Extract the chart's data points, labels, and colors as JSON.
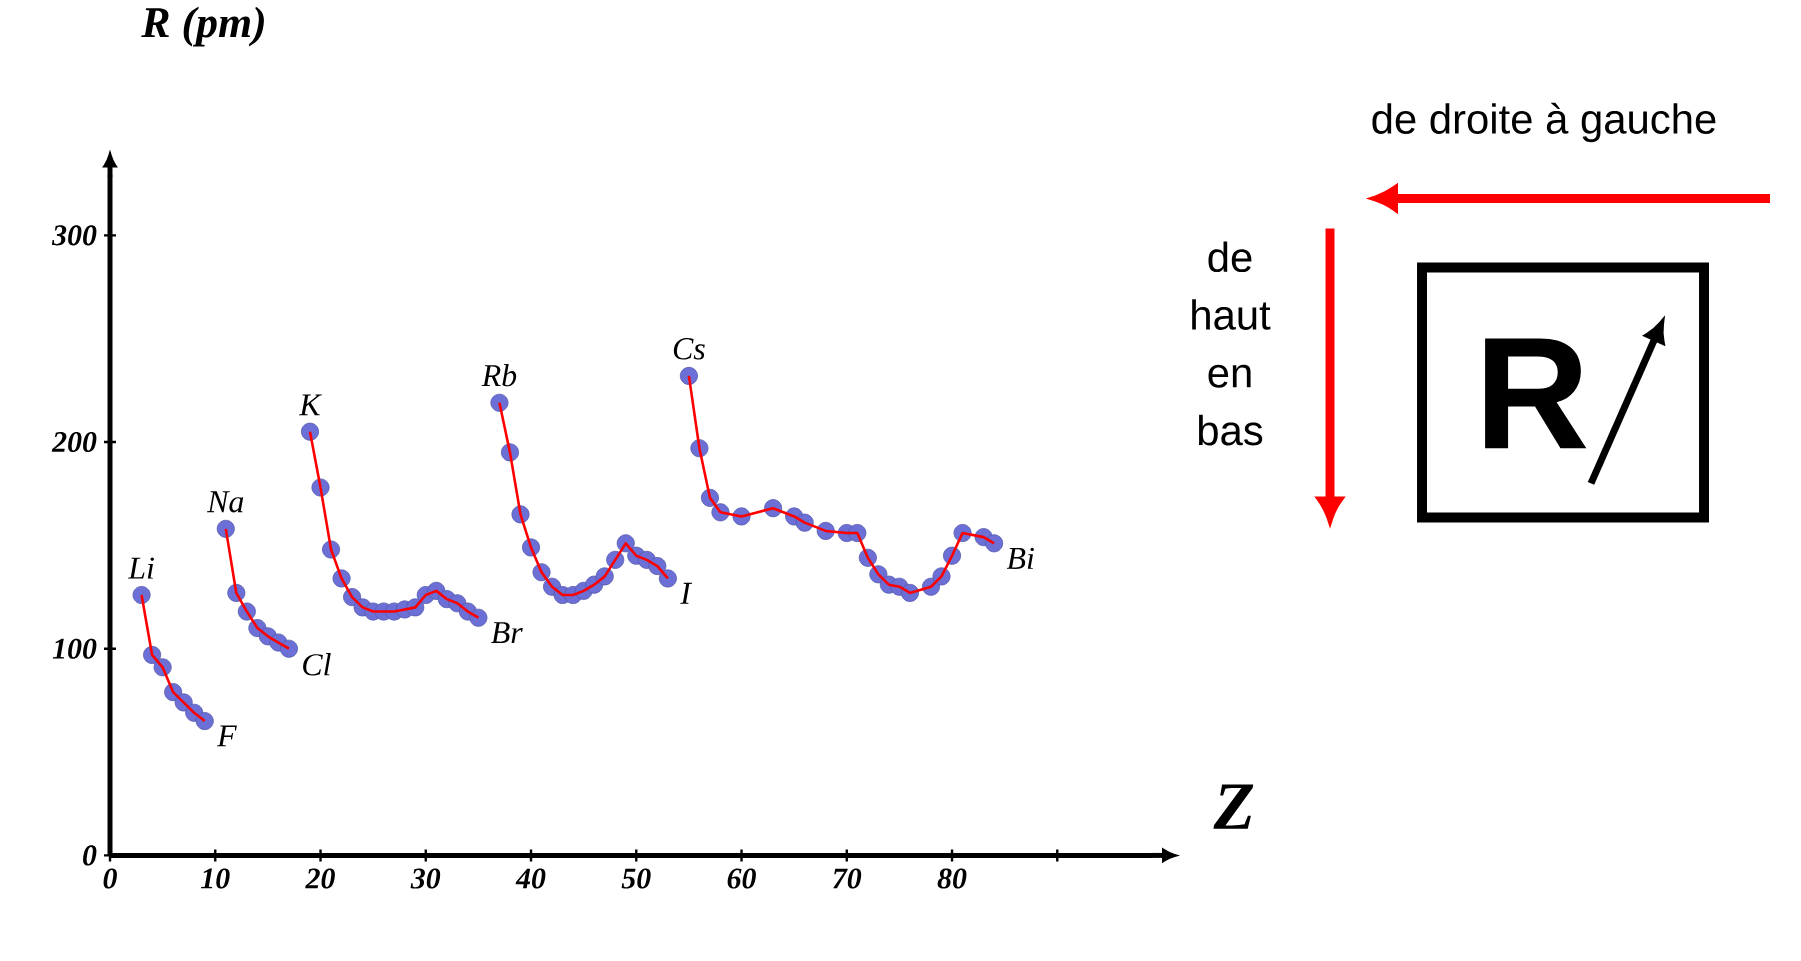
{
  "chart_data": {
    "type": "line",
    "xlabel": "Z",
    "ylabel": "R (pm)",
    "xlim": [
      0,
      99
    ],
    "ylim": [
      0,
      329
    ],
    "xticks": [
      0,
      10,
      20,
      30,
      40,
      50,
      60,
      70,
      80,
      {
        "value": 90,
        "label": null
      }
    ],
    "yticks": [
      0,
      100,
      200,
      300
    ],
    "marker": "circle",
    "grid": false,
    "series": [
      {
        "color": "#ff0000",
        "x": [
          3,
          4,
          5,
          6,
          7,
          8,
          9
        ],
        "values": [
          126,
          97,
          91,
          79,
          74,
          69,
          65
        ]
      },
      {
        "color": "#ff0000",
        "x": [
          11,
          12,
          13,
          14,
          15,
          16,
          17
        ],
        "values": [
          158,
          127,
          118,
          110,
          106,
          103,
          100
        ]
      },
      {
        "color": "#ff0000",
        "x": [
          19,
          20,
          21,
          22,
          23,
          24,
          25,
          26,
          27,
          28,
          29,
          30,
          31,
          32,
          33,
          34,
          35
        ],
        "values": [
          205,
          178,
          148,
          134,
          125,
          120,
          118,
          118,
          118,
          119,
          120,
          126,
          128,
          124,
          122,
          118,
          115
        ]
      },
      {
        "color": "#ff0000",
        "x": [
          37,
          38,
          39,
          40,
          41,
          42,
          43,
          44,
          45,
          46,
          47,
          48,
          49,
          50,
          51,
          52,
          53
        ],
        "values": [
          219,
          195,
          165,
          149,
          137,
          130,
          126,
          126,
          128,
          131,
          135,
          143,
          151,
          145,
          143,
          140,
          134
        ]
      },
      {
        "color": "#ff0000",
        "x": [
          55,
          56,
          57,
          58,
          60,
          63,
          65,
          66,
          68,
          70,
          71,
          72,
          73,
          74,
          75,
          76,
          78,
          79,
          80,
          81,
          83,
          84
        ],
        "values": [
          232,
          197,
          173,
          166,
          164,
          168,
          164,
          161,
          157,
          156,
          156,
          144,
          136,
          131,
          130,
          127,
          130,
          135,
          145,
          156,
          154,
          151
        ]
      }
    ],
    "annotations": [
      {
        "text": "Li",
        "x": 3,
        "y": 126
      },
      {
        "text": "F",
        "x": 9,
        "y": 65
      },
      {
        "text": "Na",
        "x": 11,
        "y": 158
      },
      {
        "text": "Cl",
        "x": 17,
        "y": 100
      },
      {
        "text": "K",
        "x": 19,
        "y": 205
      },
      {
        "text": "Br",
        "x": 35,
        "y": 115
      },
      {
        "text": "Rb",
        "x": 37,
        "y": 219
      },
      {
        "text": "I",
        "x": 53,
        "y": 134
      },
      {
        "text": "Cs",
        "x": 55,
        "y": 232
      },
      {
        "text": "Bi",
        "x": 84,
        "y": 151
      },
      "de droite à gauche",
      "de haut en bas",
      "R"
    ]
  }
}
